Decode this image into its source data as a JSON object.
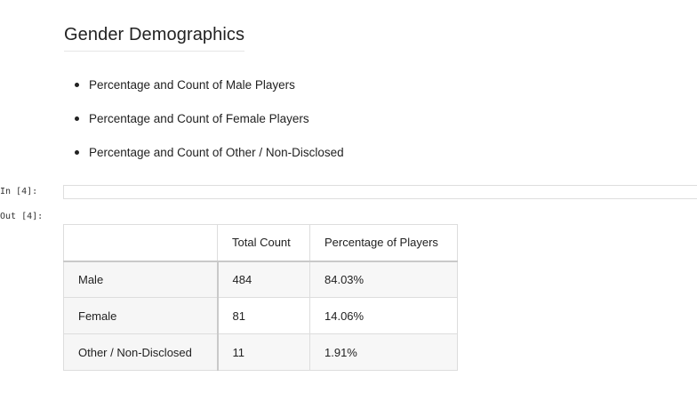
{
  "heading": "Gender Demographics",
  "bullets": [
    "Percentage and Count of Male Players",
    "Percentage and Count of Female Players",
    "Percentage and Count of Other / Non-Disclosed"
  ],
  "cell": {
    "in_prompt": "In [4]:",
    "out_prompt": "Out [4]:"
  },
  "table": {
    "columns": [
      "Total Count",
      "Percentage of Players"
    ],
    "rows": [
      {
        "label": "Male",
        "count": "484",
        "pct": "84.03%"
      },
      {
        "label": "Female",
        "count": "81",
        "pct": "14.06%"
      },
      {
        "label": "Other / Non-Disclosed",
        "count": "11",
        "pct": "1.91%"
      }
    ]
  }
}
